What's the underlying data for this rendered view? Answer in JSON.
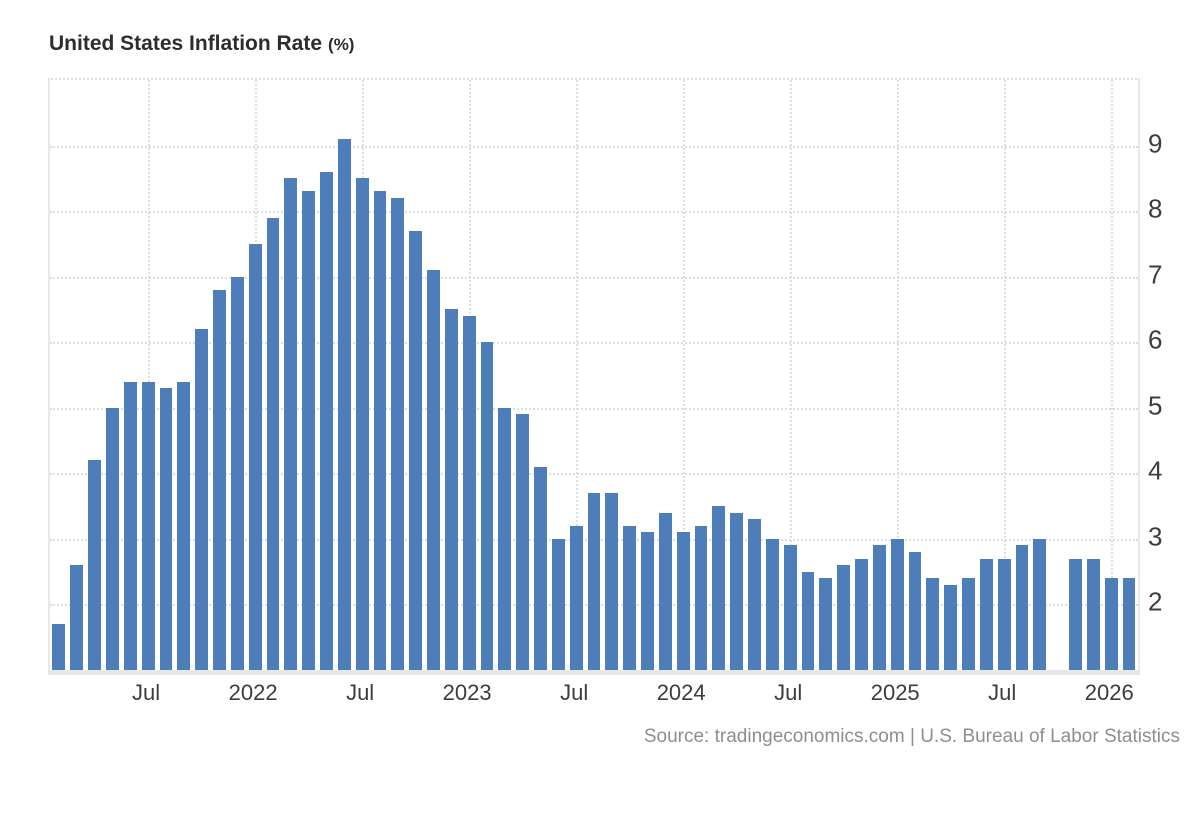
{
  "header": {
    "title": "United States Inflation Rate",
    "unit_suffix": "(%)"
  },
  "footer": {
    "source": "Source: tradingeconomics.com | U.S. Bureau of Labor Statistics"
  },
  "colors": {
    "bar": "#4d7eba",
    "grid": "#dedede",
    "band": "#e7e7e7",
    "border": "#e8e8e8",
    "label": "#3d3d3d",
    "title": "#2d2d2d",
    "source": "#8e8e8e",
    "background": "#ffffff"
  },
  "chart_data": {
    "type": "bar",
    "title": "United States Inflation Rate (%)",
    "xlabel": "",
    "ylabel": "",
    "ylim": [
      1,
      10
    ],
    "y_ticks": [
      2,
      3,
      4,
      5,
      6,
      7,
      8,
      9
    ],
    "grid": "dotted",
    "legend": "none",
    "note": "Monthly YoY inflation rate; one month (Oct 2025) has no bar (missing value).",
    "categories": [
      "Feb 2021",
      "Mar 2021",
      "Apr 2021",
      "May 2021",
      "Jun 2021",
      "Jul 2021",
      "Aug 2021",
      "Sep 2021",
      "Oct 2021",
      "Nov 2021",
      "Dec 2021",
      "Jan 2022",
      "Feb 2022",
      "Mar 2022",
      "Apr 2022",
      "May 2022",
      "Jun 2022",
      "Jul 2022",
      "Aug 2022",
      "Sep 2022",
      "Oct 2022",
      "Nov 2022",
      "Dec 2022",
      "Jan 2023",
      "Feb 2023",
      "Mar 2023",
      "Apr 2023",
      "May 2023",
      "Jun 2023",
      "Jul 2023",
      "Aug 2023",
      "Sep 2023",
      "Oct 2023",
      "Nov 2023",
      "Dec 2023",
      "Jan 2024",
      "Feb 2024",
      "Mar 2024",
      "Apr 2024",
      "May 2024",
      "Jun 2024",
      "Jul 2024",
      "Aug 2024",
      "Sep 2024",
      "Oct 2024",
      "Nov 2024",
      "Dec 2024",
      "Jan 2025",
      "Feb 2025",
      "Mar 2025",
      "Apr 2025",
      "May 2025",
      "Jun 2025",
      "Jul 2025",
      "Aug 2025",
      "Sep 2025",
      "Oct 2025",
      "Nov 2025",
      "Dec 2025",
      "Jan 2026",
      "Feb 2026"
    ],
    "values": [
      1.7,
      2.6,
      4.2,
      5.0,
      5.4,
      5.4,
      5.3,
      5.4,
      6.2,
      6.8,
      7.0,
      7.5,
      7.9,
      8.5,
      8.3,
      8.6,
      9.1,
      8.5,
      8.3,
      8.2,
      7.7,
      7.1,
      6.5,
      6.4,
      6.0,
      5.0,
      4.9,
      4.1,
      3.0,
      3.2,
      3.7,
      3.7,
      3.2,
      3.1,
      3.4,
      3.1,
      3.2,
      3.5,
      3.4,
      3.3,
      3.0,
      2.9,
      2.5,
      2.4,
      2.6,
      2.7,
      2.9,
      3.0,
      2.8,
      2.4,
      2.3,
      2.4,
      2.7,
      2.7,
      2.9,
      3.0,
      null,
      2.7,
      2.7,
      2.4,
      2.4
    ],
    "x_ticks": [
      {
        "index": 5,
        "label": "Jul"
      },
      {
        "index": 11,
        "label": "2022"
      },
      {
        "index": 17,
        "label": "Jul"
      },
      {
        "index": 23,
        "label": "2023"
      },
      {
        "index": 29,
        "label": "Jul"
      },
      {
        "index": 35,
        "label": "2024"
      },
      {
        "index": 41,
        "label": "Jul"
      },
      {
        "index": 47,
        "label": "2025"
      },
      {
        "index": 53,
        "label": "Jul"
      },
      {
        "index": 59,
        "label": "2026"
      }
    ]
  }
}
